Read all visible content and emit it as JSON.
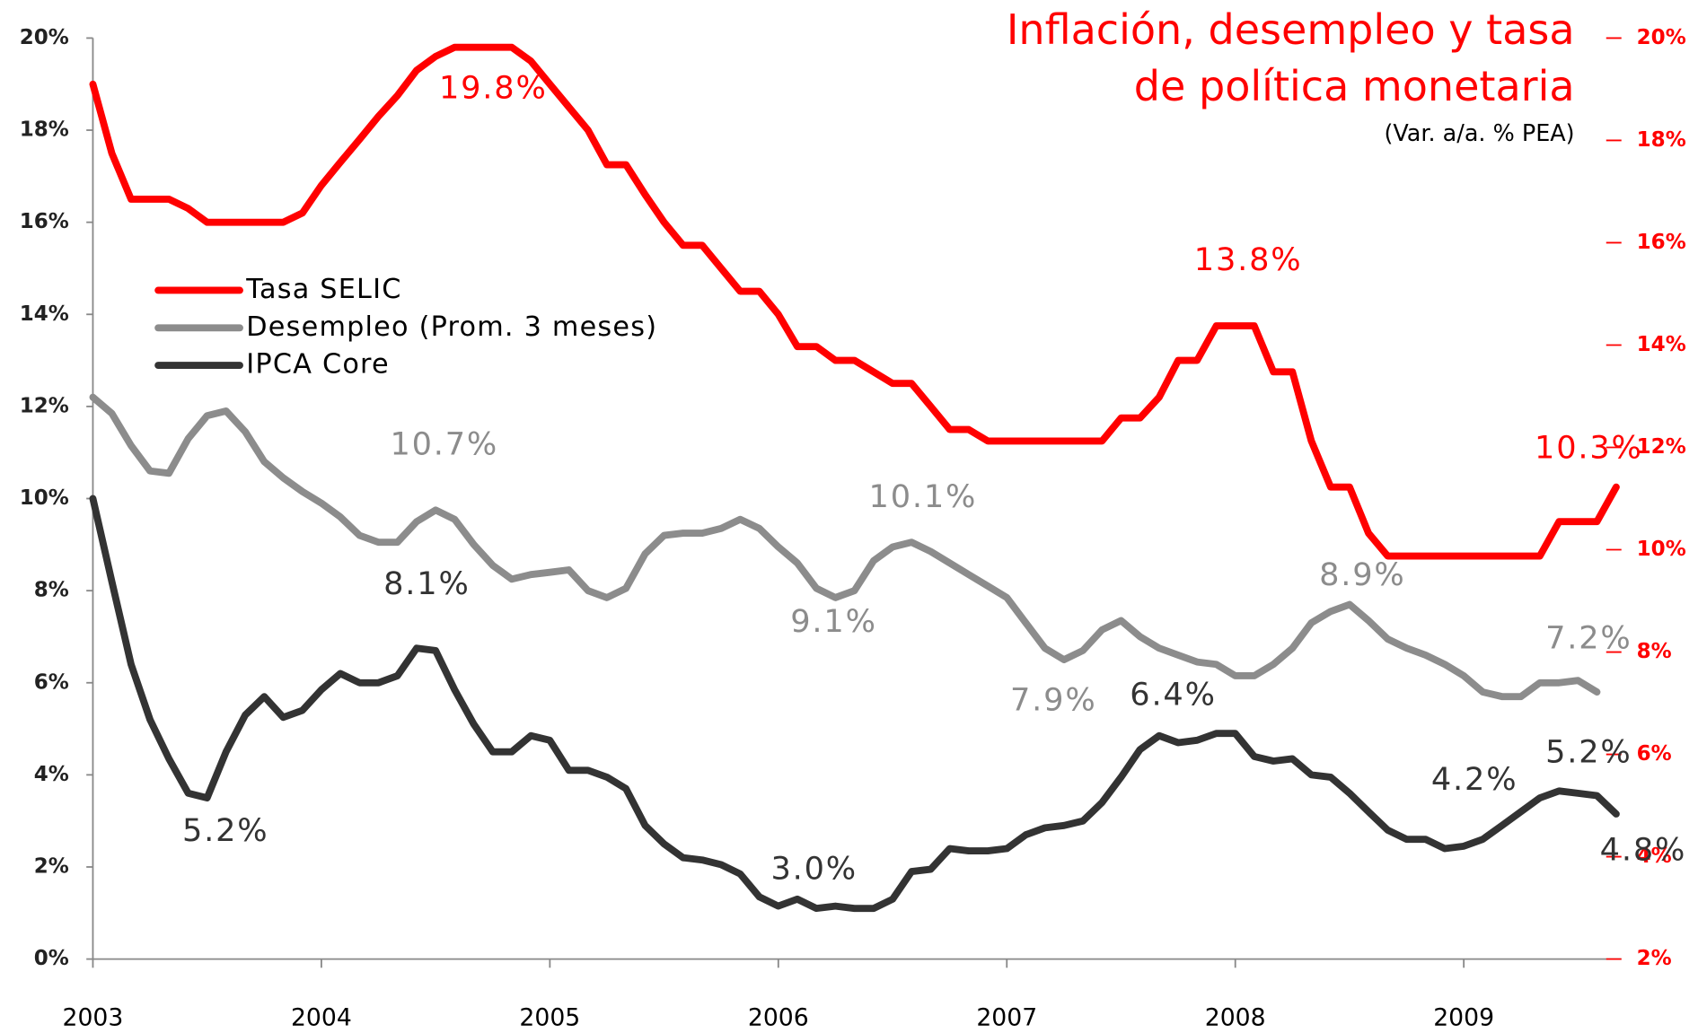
{
  "chart_data": {
    "type": "line",
    "title": [
      "Inflación, desempleo y tasa",
      "de política monetaria"
    ],
    "subtitle": "(Var. a/a. % PEA)",
    "x": [
      2003,
      2003.083,
      2003.167,
      2003.25,
      2003.333,
      2003.417,
      2003.5,
      2003.583,
      2003.667,
      2003.75,
      2003.833,
      2003.917,
      2004,
      2004.083,
      2004.167,
      2004.25,
      2004.333,
      2004.417,
      2004.5,
      2004.583,
      2004.667,
      2004.75,
      2004.833,
      2004.917,
      2005,
      2005.083,
      2005.167,
      2005.25,
      2005.333,
      2005.417,
      2005.5,
      2005.583,
      2005.667,
      2005.75,
      2005.833,
      2005.917,
      2006,
      2006.083,
      2006.167,
      2006.25,
      2006.333,
      2006.417,
      2006.5,
      2006.583,
      2006.667,
      2006.75,
      2006.833,
      2006.917,
      2007,
      2007.083,
      2007.167,
      2007.25,
      2007.333,
      2007.417,
      2007.5,
      2007.583,
      2007.667,
      2007.75,
      2007.833,
      2007.917,
      2008,
      2008.083,
      2008.167,
      2008.25,
      2008.333,
      2008.417,
      2008.5,
      2008.583,
      2008.667,
      2008.75,
      2008.833,
      2008.917,
      2009,
      2009.083,
      2009.167,
      2009.25,
      2009.333,
      2009.417,
      2009.5,
      2009.583,
      2009.667
    ],
    "xlim": [
      2003,
      2009.69
    ],
    "xticks": [
      2003,
      2004,
      2005,
      2006,
      2007,
      2008,
      2009
    ],
    "ylim": [
      0,
      20
    ],
    "yticks": [
      {
        "value": 0,
        "label": "0%"
      },
      {
        "value": 2,
        "label": "2%"
      },
      {
        "value": 4,
        "label": "4%"
      },
      {
        "value": 6,
        "label": "6%"
      },
      {
        "value": 8,
        "label": "8%"
      },
      {
        "value": 10,
        "label": "10%"
      },
      {
        "value": 12,
        "label": "12%"
      },
      {
        "value": 14,
        "label": "14%"
      },
      {
        "value": 16,
        "label": "16%"
      },
      {
        "value": 18,
        "label": "18%"
      },
      {
        "value": 20,
        "label": "20%"
      }
    ],
    "y2lim": [
      2,
      20
    ],
    "y2ticks": [
      {
        "value": 2,
        "label": "2%"
      },
      {
        "value": 4,
        "label": "4%"
      },
      {
        "value": 6,
        "label": "6%"
      },
      {
        "value": 8,
        "label": "8%"
      },
      {
        "value": 10,
        "label": "10%"
      },
      {
        "value": 12,
        "label": "12%"
      },
      {
        "value": 14,
        "label": "14%"
      },
      {
        "value": 16,
        "label": "16%"
      },
      {
        "value": 18,
        "label": "18%"
      },
      {
        "value": 20,
        "label": "20%"
      }
    ],
    "y2color": "#ff0000",
    "series": [
      {
        "name": "Tasa SELIC",
        "color": "#ff0000",
        "values": [
          19.0,
          17.5,
          16.5,
          16.5,
          16.5,
          16.3,
          16.0,
          16.0,
          16.0,
          16.0,
          16.0,
          16.2,
          16.8,
          17.3,
          17.8,
          18.3,
          18.75,
          19.3,
          19.6,
          19.8,
          19.8,
          19.8,
          19.8,
          19.5,
          19.0,
          18.5,
          18.0,
          17.25,
          17.25,
          16.6,
          16.0,
          15.5,
          15.5,
          15.0,
          14.5,
          14.5,
          14.0,
          13.3,
          13.3,
          13.0,
          13.0,
          12.75,
          12.5,
          12.5,
          12.0,
          11.5,
          11.5,
          11.25,
          11.25,
          11.25,
          11.25,
          11.25,
          11.25,
          11.25,
          11.75,
          11.75,
          12.2,
          13.0,
          13.0,
          13.75,
          13.75,
          13.75,
          12.75,
          12.75,
          11.25,
          10.25,
          10.25,
          9.25,
          8.75,
          8.75,
          8.75,
          8.75,
          8.75,
          8.75,
          8.75,
          8.75,
          8.75,
          9.5,
          9.5,
          9.5,
          10.25
        ],
        "annotations": [
          "19.8%",
          "13.8%",
          "10.3%"
        ]
      },
      {
        "name": "Desempleo (Prom. 3 meses)",
        "color": "#8c8c8c",
        "values": [
          12.2,
          11.85,
          11.15,
          10.6,
          10.55,
          11.3,
          11.8,
          11.9,
          11.45,
          10.8,
          10.45,
          10.15,
          9.9,
          9.6,
          9.2,
          9.05,
          9.05,
          9.5,
          9.75,
          9.55,
          9.0,
          8.55,
          8.25,
          8.35,
          8.4,
          8.45,
          8.0,
          7.85,
          8.05,
          8.8,
          9.2,
          9.25,
          9.25,
          9.35,
          9.55,
          9.35,
          8.95,
          8.6,
          8.05,
          7.85,
          8.0,
          8.65,
          8.95,
          9.05,
          8.85,
          8.6,
          8.35,
          8.1,
          7.85,
          7.3,
          6.75,
          6.5,
          6.7,
          7.15,
          7.35,
          7.0,
          6.75,
          6.6,
          6.45,
          6.4,
          6.15,
          6.15,
          6.4,
          6.75,
          7.3,
          7.55,
          7.7,
          7.35,
          6.95,
          6.75,
          6.6,
          6.4,
          6.15,
          5.8,
          5.7,
          5.7,
          6.0,
          6.0,
          6.05,
          5.8,
          null
        ],
        "annotations": [
          "10.7%",
          "10.1%",
          "9.1%",
          "7.9%",
          "8.9%",
          "7.2%"
        ]
      },
      {
        "name": "IPCA Core",
        "color": "#333333",
        "values": [
          10.0,
          8.2,
          6.4,
          5.2,
          4.35,
          3.6,
          3.5,
          4.5,
          5.3,
          5.7,
          5.25,
          5.4,
          5.85,
          6.2,
          6.0,
          6.0,
          6.15,
          6.75,
          6.7,
          5.85,
          5.1,
          4.5,
          4.5,
          4.85,
          4.75,
          4.1,
          4.1,
          3.95,
          3.7,
          2.9,
          2.5,
          2.2,
          2.15,
          2.05,
          1.85,
          1.35,
          1.15,
          1.3,
          1.1,
          1.15,
          1.1,
          1.1,
          1.3,
          1.9,
          1.95,
          2.4,
          2.35,
          2.35,
          2.4,
          2.7,
          2.85,
          2.9,
          3.0,
          3.4,
          3.95,
          4.55,
          4.85,
          4.7,
          4.75,
          4.9,
          4.9,
          4.4,
          4.3,
          4.35,
          4.0,
          3.95,
          3.6,
          3.2,
          2.8,
          2.6,
          2.6,
          2.4,
          2.45,
          2.6,
          2.9,
          3.2,
          3.5,
          3.65,
          3.6,
          3.55,
          3.15
        ],
        "annotations": [
          "8.1%",
          "5.2%",
          "3.0%",
          "6.4%",
          "4.2%",
          "5.2%",
          "4.8%"
        ]
      }
    ]
  }
}
